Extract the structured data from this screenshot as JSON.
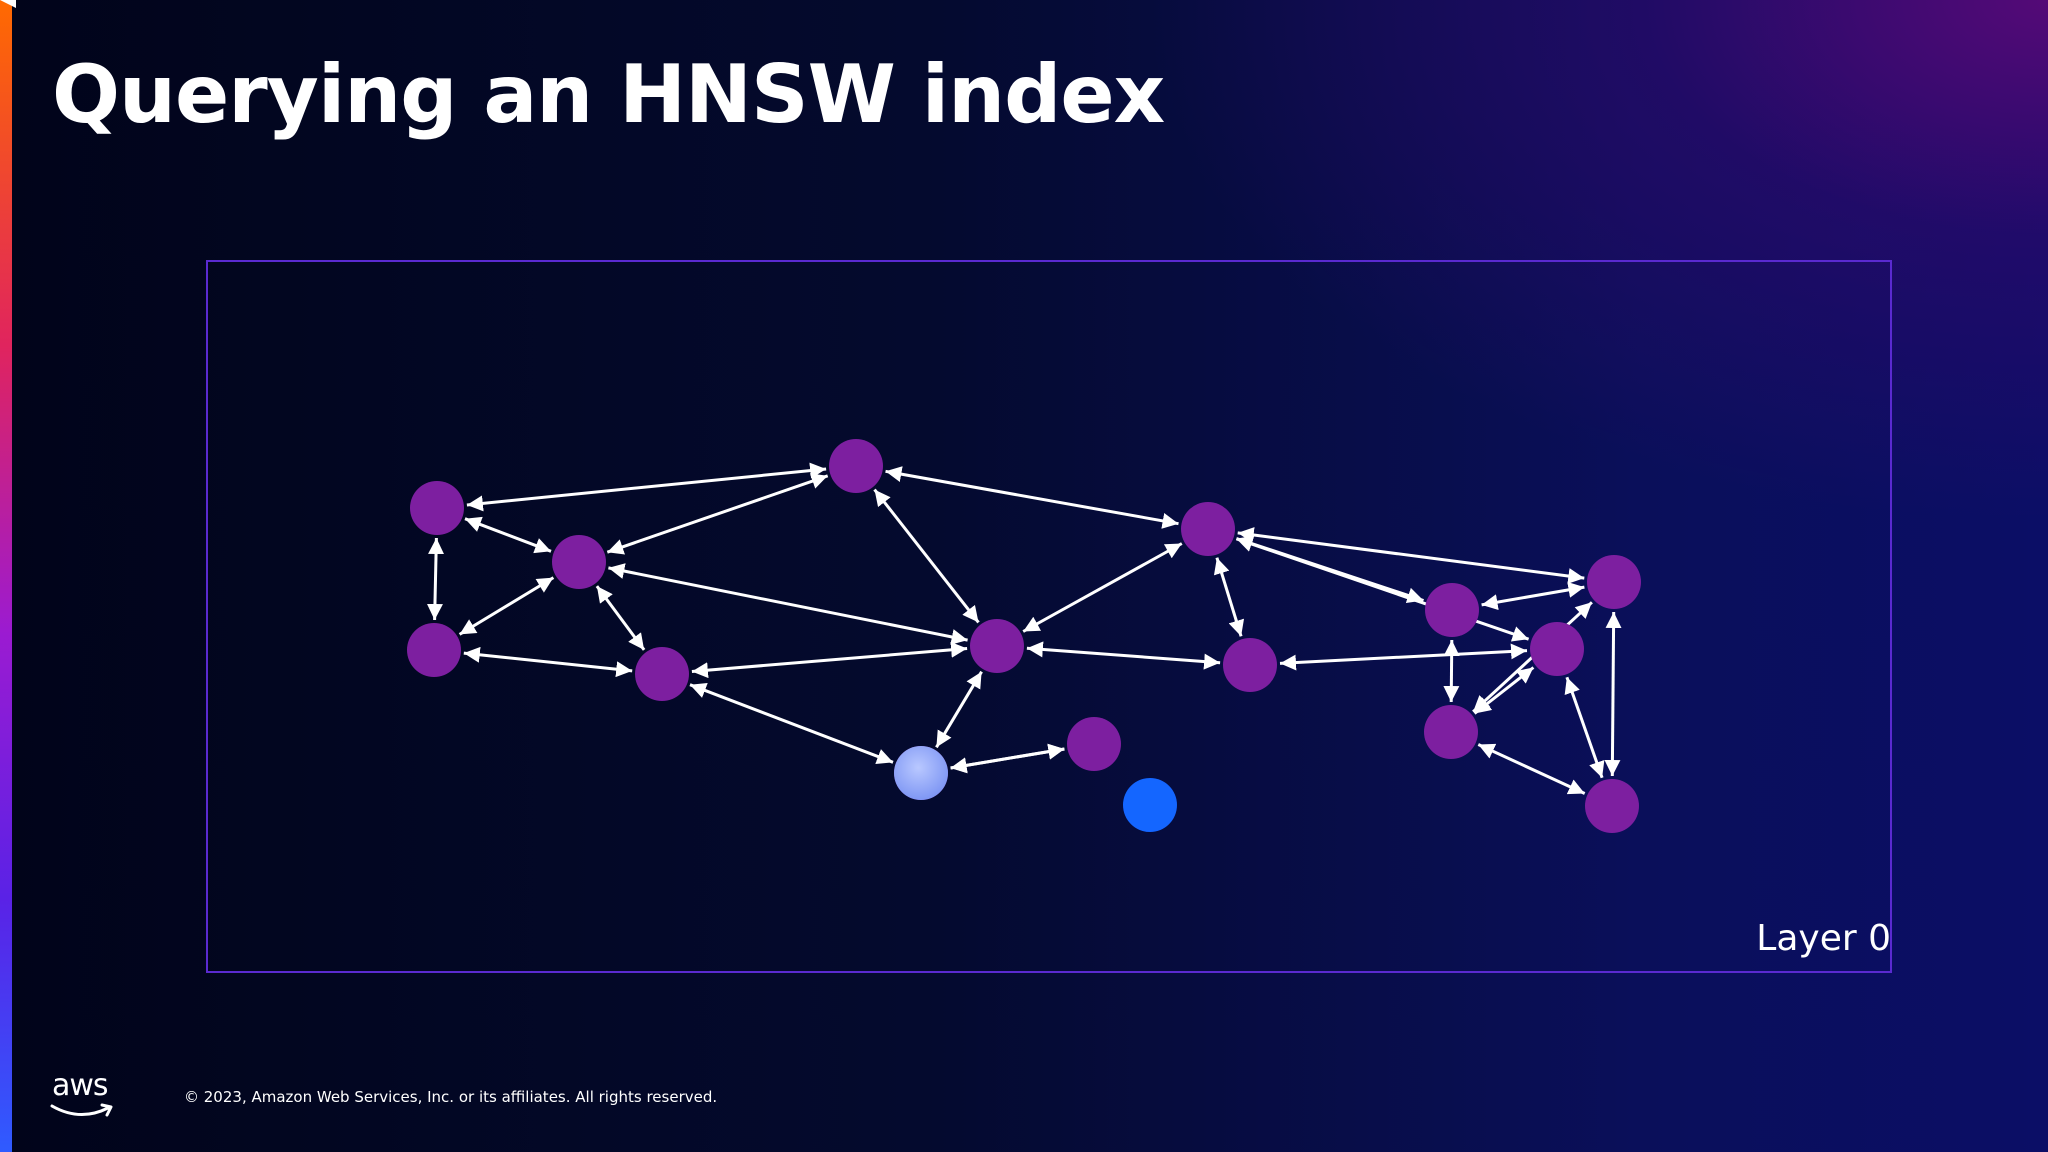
{
  "slide": {
    "title": "Querying an HNSW index",
    "layer_label": "Layer 0",
    "footer": {
      "logo_text": "aws",
      "copyright": "© 2023, Amazon Web Services, Inc. or its affiliates. All rights reserved."
    }
  },
  "colors": {
    "node": "#7d1fa0",
    "entry_node": "#9bb3ff",
    "query_node": "#1466ff",
    "edge": "#ffffff",
    "frame": "#5a2ad0"
  },
  "graph": {
    "nodes": [
      {
        "id": "a",
        "kind": "node"
      },
      {
        "id": "b",
        "kind": "node"
      },
      {
        "id": "c",
        "kind": "node"
      },
      {
        "id": "d",
        "kind": "node"
      },
      {
        "id": "e",
        "kind": "node"
      },
      {
        "id": "f",
        "kind": "node"
      },
      {
        "id": "g",
        "kind": "node"
      },
      {
        "id": "h",
        "kind": "node"
      },
      {
        "id": "i",
        "kind": "node"
      },
      {
        "id": "j",
        "kind": "node"
      },
      {
        "id": "k",
        "kind": "node"
      },
      {
        "id": "l",
        "kind": "node"
      },
      {
        "id": "m",
        "kind": "node"
      },
      {
        "id": "n",
        "kind": "node"
      },
      {
        "id": "o",
        "kind": "node"
      },
      {
        "id": "p",
        "kind": "entry"
      },
      {
        "id": "q",
        "kind": "query"
      }
    ],
    "edges": [
      [
        "a",
        "c"
      ],
      [
        "a",
        "b"
      ],
      [
        "a",
        "d"
      ],
      [
        "b",
        "c"
      ],
      [
        "b",
        "d"
      ],
      [
        "b",
        "e"
      ],
      [
        "b",
        "g"
      ],
      [
        "d",
        "e"
      ],
      [
        "c",
        "g"
      ],
      [
        "c",
        "h"
      ],
      [
        "g",
        "e"
      ],
      [
        "g",
        "h"
      ],
      [
        "g",
        "i"
      ],
      [
        "g",
        "j"
      ],
      [
        "h",
        "i"
      ],
      [
        "h",
        "k"
      ],
      [
        "h",
        "l"
      ],
      [
        "h",
        "m"
      ],
      [
        "i",
        "m"
      ],
      [
        "j",
        "p"
      ],
      [
        "j",
        "e"
      ],
      [
        "j",
        "f"
      ],
      [
        "f",
        "p"
      ],
      [
        "k",
        "l"
      ],
      [
        "k",
        "n"
      ],
      [
        "l",
        "n"
      ],
      [
        "l",
        "o"
      ],
      [
        "n",
        "m"
      ],
      [
        "n",
        "o"
      ],
      [
        "m",
        "o"
      ]
    ]
  }
}
